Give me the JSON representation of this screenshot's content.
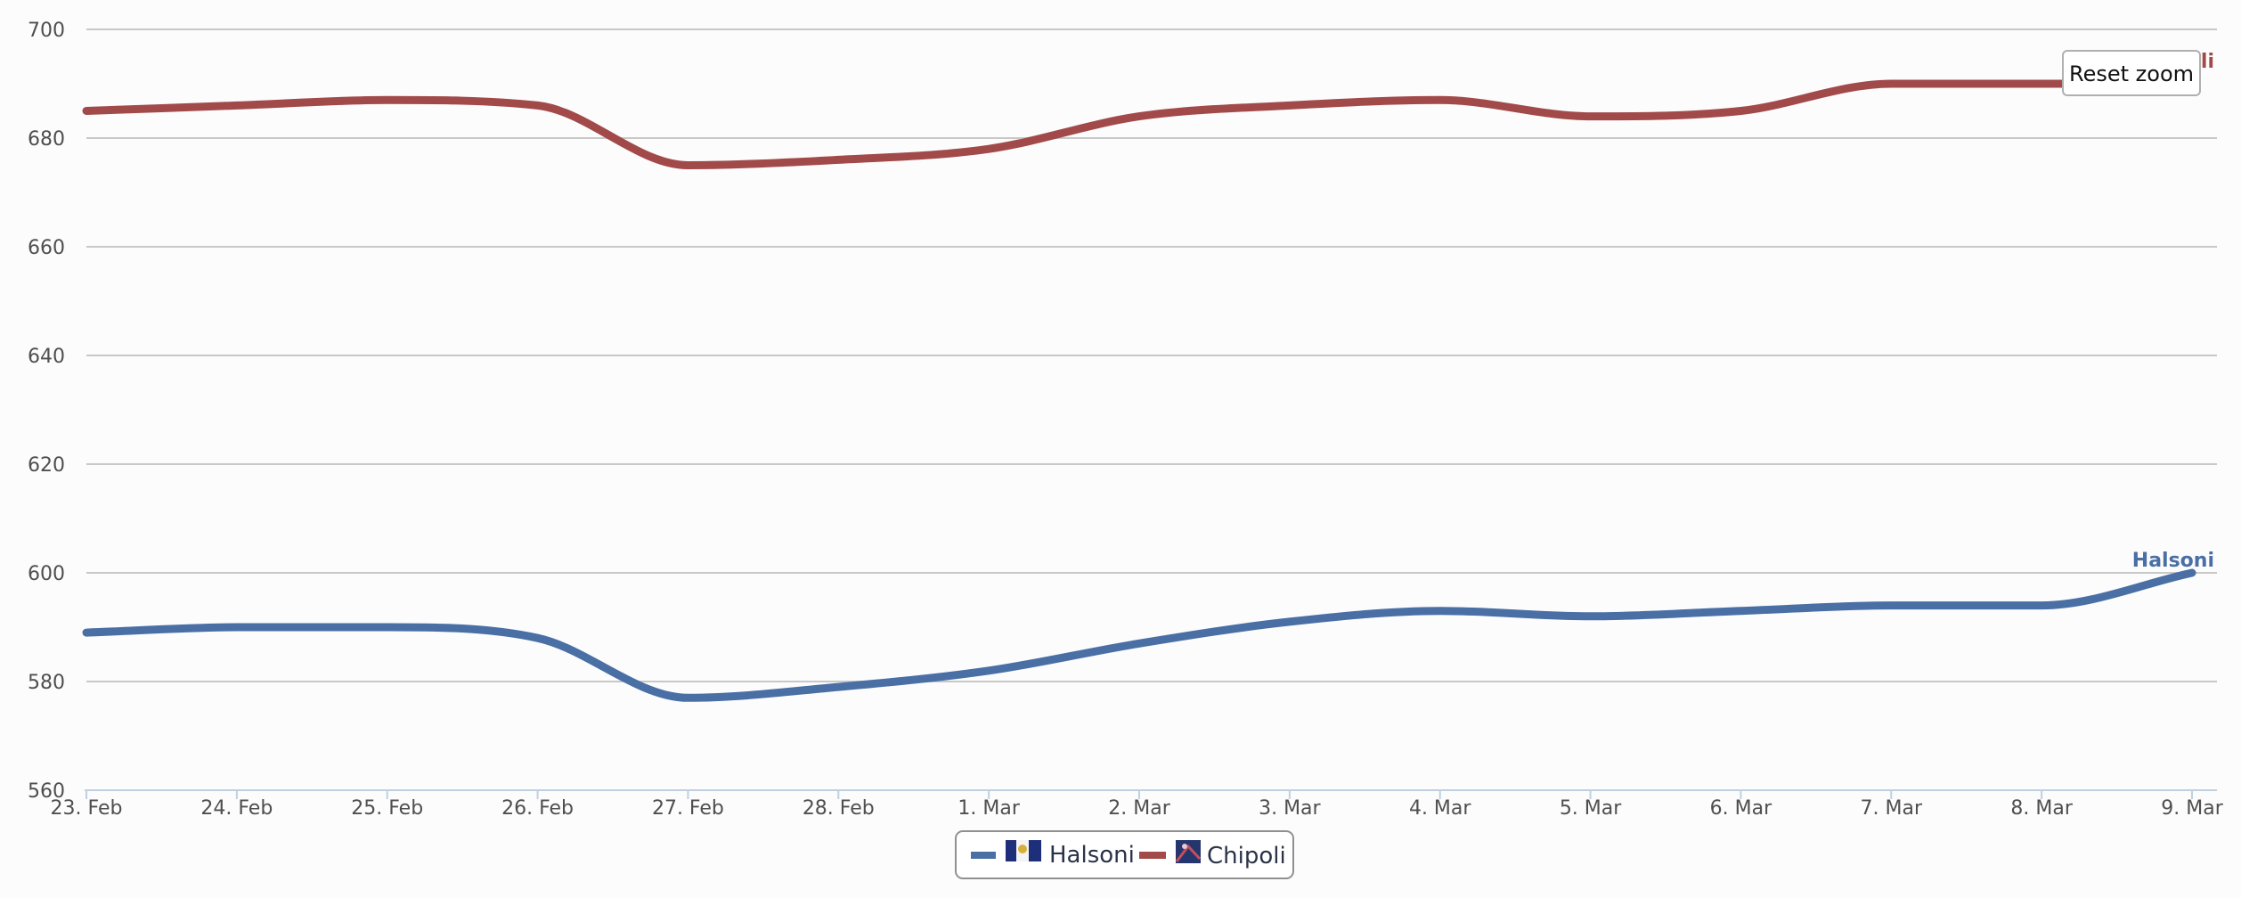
{
  "chart_data": {
    "type": "line",
    "title": "",
    "xlabel": "",
    "ylabel": "",
    "x": [
      "23. Feb",
      "24. Feb",
      "25. Feb",
      "26. Feb",
      "27. Feb",
      "28. Feb",
      "1. Mar",
      "2. Mar",
      "3. Mar",
      "4. Mar",
      "5. Mar",
      "6. Mar",
      "7. Mar",
      "8. Mar",
      "9. Mar"
    ],
    "y_ticks": [
      "560",
      "580",
      "600",
      "620",
      "640",
      "660",
      "680",
      "700"
    ],
    "ylim": [
      560,
      700
    ],
    "grid": true,
    "legend_position": "bottom-center",
    "series": [
      {
        "name": "Halsoni",
        "color": "#4a6fa5",
        "values": [
          589,
          590,
          590,
          588,
          577,
          579,
          582,
          587,
          591,
          593,
          592,
          593,
          594,
          594,
          600
        ]
      },
      {
        "name": "Chipoli",
        "color": "#a24a4a",
        "values": [
          685,
          686,
          687,
          686,
          675,
          676,
          678,
          684,
          686,
          687,
          684,
          685,
          690,
          690,
          690
        ]
      }
    ],
    "end_labels": [
      "Halsoni",
      "li"
    ]
  },
  "ui": {
    "reset_zoom_label": "Reset zoom"
  }
}
